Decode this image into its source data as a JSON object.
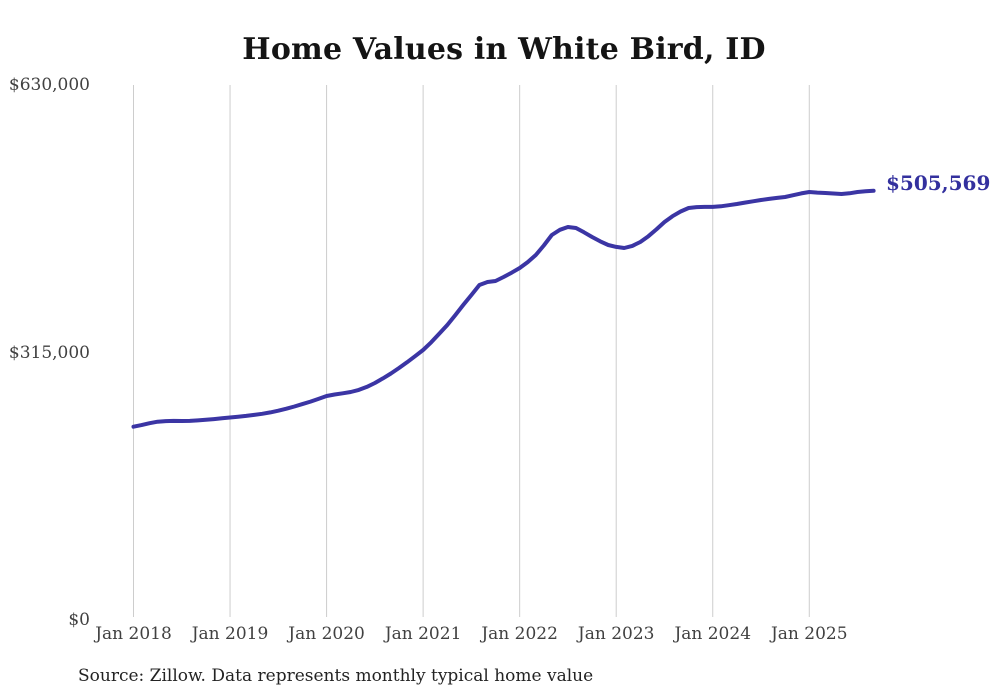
{
  "title": "Home Values in White Bird, ID",
  "source_note": "Source: Zillow. Data represents monthly typical home value",
  "end_label": "$505,569",
  "colors": {
    "line": "#3b35a4",
    "end_label_text": "#33309e",
    "gridline": "#cdcdcd",
    "axis_text": "#414141",
    "title_text": "#141414",
    "source_text": "#232323",
    "background": "#ffffff"
  },
  "chart_data": {
    "type": "line",
    "title": "Home Values in White Bird, ID",
    "series_name": "Monthly typical home value",
    "grid": "vertical-only",
    "legend": "none",
    "ylim": [
      0,
      630000
    ],
    "y_ticks": [
      {
        "label": "$630,000",
        "value": 630000
      },
      {
        "label": "$315,000",
        "value": 315000
      },
      {
        "label": "$0",
        "value": 0
      }
    ],
    "x_tick_labels": [
      "Jan 2018",
      "Jan 2019",
      "Jan 2020",
      "Jan 2021",
      "Jan 2022",
      "Jan 2023",
      "Jan 2024",
      "Jan 2025"
    ],
    "x_interval": "monthly",
    "x_start": "2018-01",
    "x_end": "2025-09",
    "final_value": 505569,
    "final_value_label": "$505,569",
    "months": [
      "2018-01",
      "2018-02",
      "2018-03",
      "2018-04",
      "2018-05",
      "2018-06",
      "2018-07",
      "2018-08",
      "2018-09",
      "2018-10",
      "2018-11",
      "2018-12",
      "2019-01",
      "2019-02",
      "2019-03",
      "2019-04",
      "2019-05",
      "2019-06",
      "2019-07",
      "2019-08",
      "2019-09",
      "2019-10",
      "2019-11",
      "2019-12",
      "2020-01",
      "2020-02",
      "2020-03",
      "2020-04",
      "2020-05",
      "2020-06",
      "2020-07",
      "2020-08",
      "2020-09",
      "2020-10",
      "2020-11",
      "2020-12",
      "2021-01",
      "2021-02",
      "2021-03",
      "2021-04",
      "2021-05",
      "2021-06",
      "2021-07",
      "2021-08",
      "2021-09",
      "2021-10",
      "2021-11",
      "2021-12",
      "2022-01",
      "2022-02",
      "2022-03",
      "2022-04",
      "2022-05",
      "2022-06",
      "2022-07",
      "2022-08",
      "2022-09",
      "2022-10",
      "2022-11",
      "2022-12",
      "2023-01",
      "2023-02",
      "2023-03",
      "2023-04",
      "2023-05",
      "2023-06",
      "2023-07",
      "2023-08",
      "2023-09",
      "2023-10",
      "2023-11",
      "2023-12",
      "2024-01",
      "2024-02",
      "2024-03",
      "2024-04",
      "2024-05",
      "2024-06",
      "2024-07",
      "2024-08",
      "2024-09",
      "2024-10",
      "2024-11",
      "2024-12",
      "2025-01",
      "2025-02",
      "2025-03",
      "2025-04",
      "2025-05",
      "2025-06",
      "2025-07",
      "2025-08",
      "2025-09"
    ],
    "values": [
      227600,
      229500,
      231800,
      233500,
      234200,
      234400,
      234300,
      234500,
      235000,
      235700,
      236600,
      237500,
      238500,
      239400,
      240400,
      241500,
      242800,
      244500,
      246500,
      248800,
      251400,
      254200,
      257200,
      260400,
      263800,
      265500,
      267000,
      268500,
      271000,
      274500,
      279100,
      284500,
      290300,
      296700,
      303500,
      310600,
      318000,
      327000,
      337000,
      347400,
      359000,
      371000,
      382700,
      394500,
      398000,
      399200,
      403900,
      409000,
      414500,
      421500,
      429800,
      441000,
      453400,
      459500,
      462800,
      461600,
      456500,
      451000,
      446000,
      441600,
      439300,
      438100,
      440500,
      445100,
      452000,
      460000,
      468700,
      475500,
      481000,
      485200,
      486200,
      486400,
      486400,
      487200,
      488400,
      489900,
      491500,
      493000,
      494600,
      495900,
      497000,
      498100,
      500200,
      502300,
      504000,
      503300,
      502800,
      502200,
      501700,
      502500,
      504000,
      504800,
      505569
    ]
  }
}
